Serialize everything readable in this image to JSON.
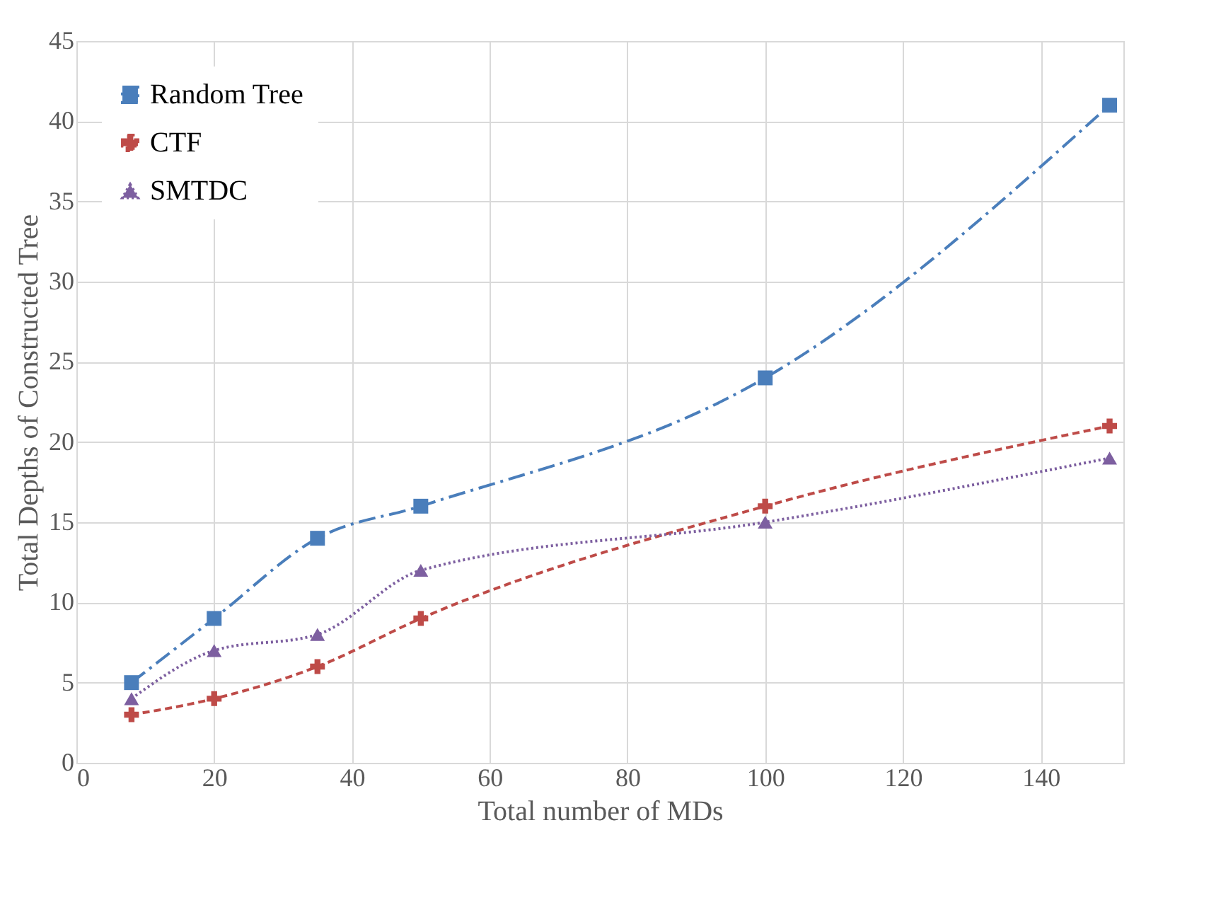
{
  "chart_data": {
    "type": "line",
    "xlabel": "Total number of MDs",
    "ylabel": "Total Depths of Constructed Tree",
    "x": [
      8,
      20,
      35,
      50,
      100,
      150
    ],
    "series": [
      {
        "name": "Random Tree",
        "color": "#4a7ebb",
        "values": [
          5,
          9,
          14,
          16,
          24,
          41
        ],
        "marker": "square",
        "line_style": "dashdot"
      },
      {
        "name": "CTF",
        "color": "#be4b48",
        "values": [
          3,
          4,
          6,
          9,
          16,
          21
        ],
        "marker": "cross",
        "line_style": "dashed"
      },
      {
        "name": "SMTDC",
        "color": "#7d5fa0",
        "values": [
          4,
          7,
          8,
          12,
          15,
          19
        ],
        "marker": "triangle",
        "line_style": "dotted"
      }
    ],
    "xlim": [
      0,
      152
    ],
    "xticks": [
      0,
      20,
      40,
      60,
      80,
      100,
      120,
      140
    ],
    "ylim": [
      0,
      45
    ],
    "yticks": [
      0,
      5,
      10,
      15,
      20,
      25,
      30,
      35,
      40,
      45
    ],
    "grid": true,
    "legend": "top left"
  }
}
